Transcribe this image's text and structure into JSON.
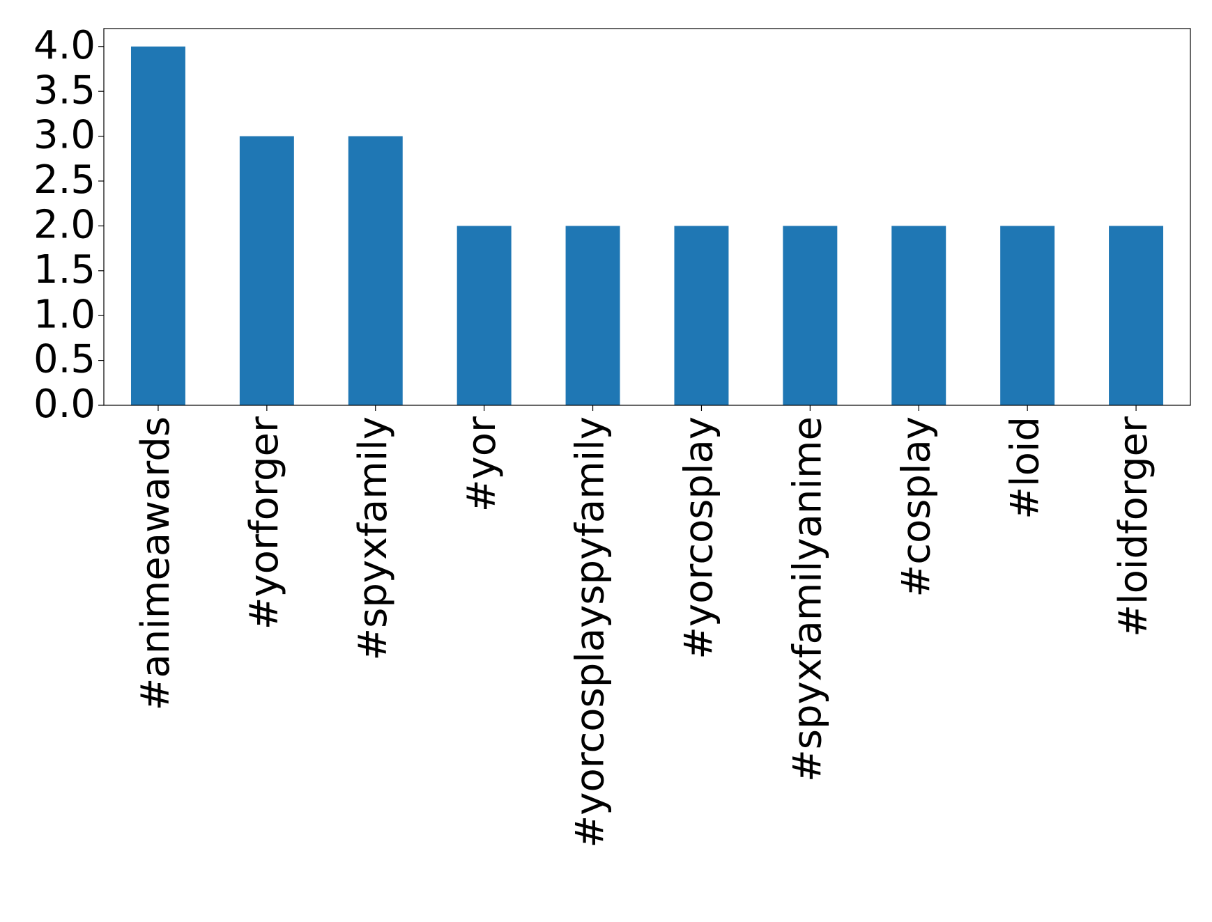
{
  "chart_data": {
    "type": "bar",
    "categories": [
      "#animeawards",
      "#yorforger",
      "#spyxfamily",
      "#yor",
      "#yorcosplayspyfamily",
      "#yorcosplay",
      "#spyxfamilyanime",
      "#cosplay",
      "#loid",
      "#loidforger"
    ],
    "values": [
      4,
      3,
      3,
      2,
      2,
      2,
      2,
      2,
      2,
      2
    ],
    "color": "#1f77b4",
    "ylim": [
      0,
      4.2
    ],
    "yticks": [
      {
        "value": 0,
        "label": "0.0"
      },
      {
        "value": 0.5,
        "label": "0.5"
      },
      {
        "value": 1,
        "label": "1.0"
      },
      {
        "value": 1.5,
        "label": "1.5"
      },
      {
        "value": 2,
        "label": "2.0"
      },
      {
        "value": 2.5,
        "label": "2.5"
      },
      {
        "value": 3,
        "label": "3.0"
      },
      {
        "value": 3.5,
        "label": "3.5"
      },
      {
        "value": 4,
        "label": "4.0"
      }
    ],
    "grid": false
  }
}
